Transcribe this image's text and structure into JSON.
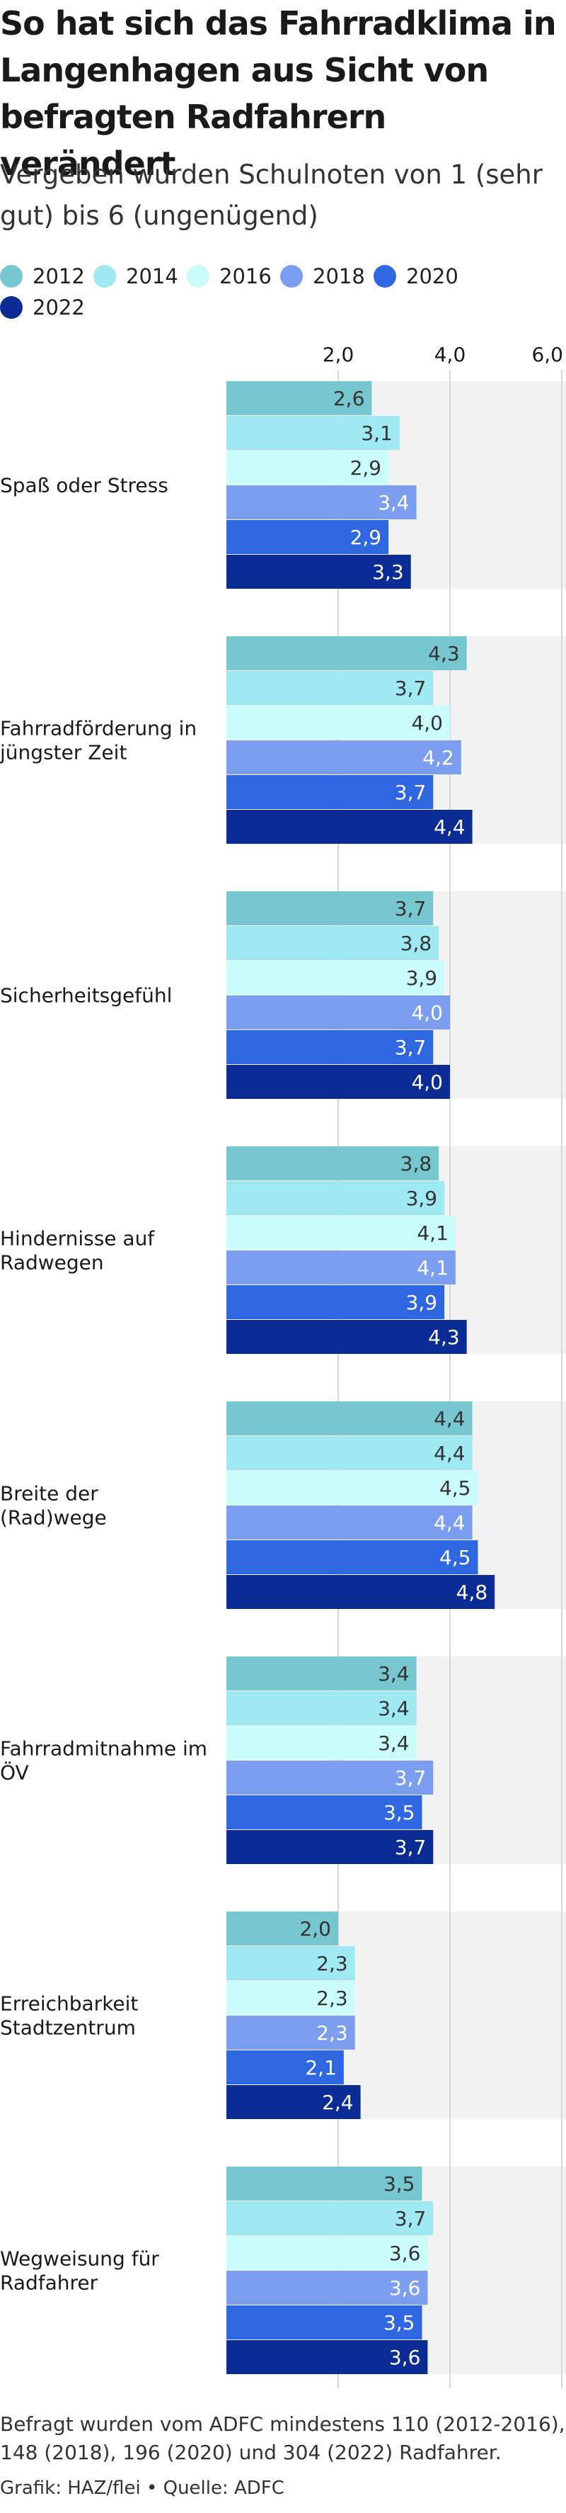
{
  "title": "So hat sich das Fahrradklima in Langenhagen aus Sicht von befragten Radfahrern verändert",
  "subtitle": "Vergeben wurden Schulnoten von 1 (sehr gut) bis 6 (ungenügend)",
  "footnote": "Befragt wurden vom ADFC mindestens 110 (2012-2016), 148 (2018), 196 (2020) und 304 (2022) Radfahrer.",
  "credits": "Grafik: HAZ/flei • Quelle: ADFC",
  "chart_data": {
    "type": "bar",
    "orientation": "horizontal",
    "title": "So hat sich das Fahrradklima in Langenhagen aus Sicht von befragten Radfahrern verändert",
    "subtitle": "Vergeben wurden Schulnoten von 1 (sehr gut) bis 6 (ungenügend)",
    "categories": [
      "Spaß oder Stress",
      "Fahrradförderung in jüngster Zeit",
      "Sicherheitsgefühl",
      "Hindernisse auf Radwegen",
      "Breite der (Rad)wege",
      "Fahrradmitnahme im ÖV",
      "Erreichbarkeit Stadtzentrum",
      "Wegweisung für Radfahrer"
    ],
    "xlim": [
      0,
      6
    ],
    "x_ticks": [
      2,
      4,
      6
    ],
    "x_tick_labels": [
      "2,0",
      "4,0",
      "6,0"
    ],
    "axis_position": "top",
    "grid": true,
    "legend_position": "top-left",
    "series": [
      {
        "name": "2012",
        "color": "#76c7cf",
        "values": [
          2.6,
          4.3,
          3.7,
          3.8,
          4.4,
          3.4,
          2.0,
          3.5
        ]
      },
      {
        "name": "2014",
        "color": "#9fe9f3",
        "values": [
          3.1,
          3.7,
          3.8,
          3.9,
          4.4,
          3.4,
          2.3,
          3.7
        ]
      },
      {
        "name": "2016",
        "color": "#cbfcfc",
        "values": [
          2.9,
          4.0,
          3.9,
          4.1,
          4.5,
          3.4,
          2.3,
          3.6
        ]
      },
      {
        "name": "2018",
        "color": "#7b9ef0",
        "values": [
          3.4,
          4.2,
          4.0,
          4.1,
          4.4,
          3.7,
          2.3,
          3.6
        ]
      },
      {
        "name": "2020",
        "color": "#2f67e0",
        "values": [
          2.9,
          3.7,
          3.7,
          3.9,
          4.5,
          3.5,
          2.1,
          3.5
        ]
      },
      {
        "name": "2022",
        "color": "#0b2c94",
        "values": [
          3.3,
          4.4,
          4.0,
          4.3,
          4.8,
          3.7,
          2.4,
          3.6
        ]
      }
    ],
    "label_colors": {
      "dark_text": "#333333",
      "light_text": "#ffffff",
      "background_band": "#f2f2f2",
      "gridline": "#cccccc"
    }
  }
}
